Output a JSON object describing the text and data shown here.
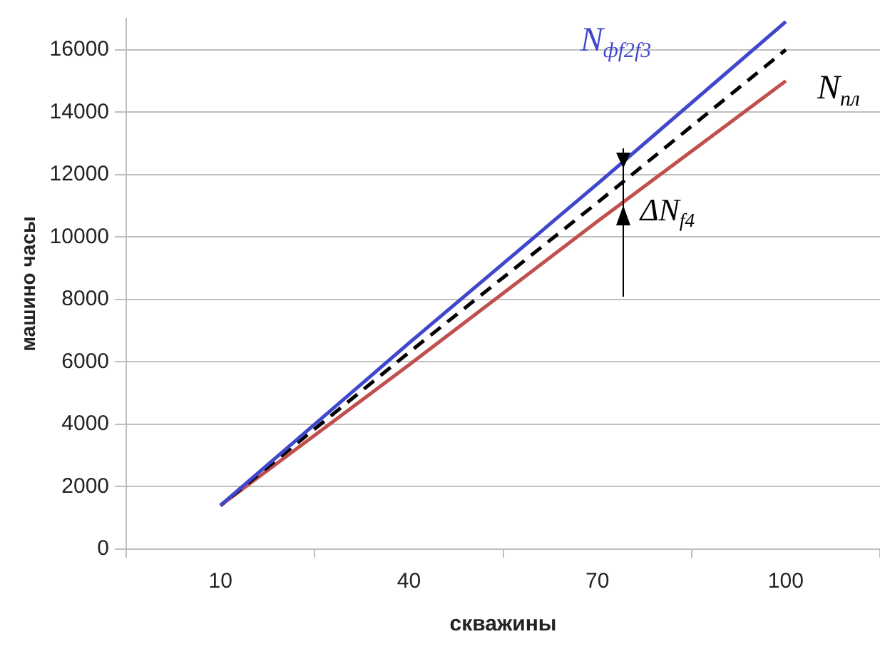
{
  "chart_data": {
    "type": "line",
    "xlabel": "скважины",
    "ylabel": "машино часы",
    "categories": [
      "10",
      "40",
      "70",
      "100"
    ],
    "series": [
      {
        "name": "N$_{фf2f3}$",
        "color": "#3f48cc",
        "values": [
          1400,
          6600,
          11700,
          16900
        ],
        "line_style": "solid"
      },
      {
        "name": "N$_{пл}$",
        "color": "#000000",
        "values": [
          1400,
          6300,
          11100,
          16000
        ],
        "line_style": "dashed"
      },
      {
        "color": "#c0504d",
        "values": [
          1400,
          5900,
          10500,
          15000
        ],
        "line_style": "solid"
      }
    ],
    "ylim": [
      0,
      17000
    ],
    "yticks": [
      0,
      2000,
      4000,
      6000,
      8000,
      10000,
      12000,
      14000,
      16000
    ],
    "grid": "y",
    "legend": false,
    "marker": "none",
    "annotations": [
      {
        "text": "ΔN$_{f4}$",
        "x": "70",
        "y": 10800
      }
    ]
  }
}
